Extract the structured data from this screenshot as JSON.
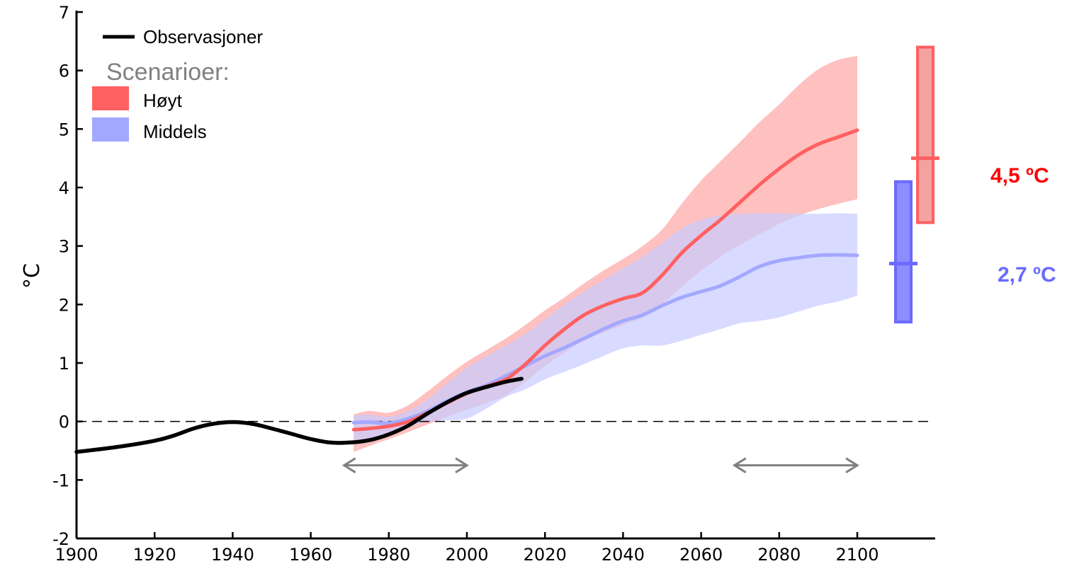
{
  "chart_data": {
    "type": "line",
    "title": "",
    "xlabel": "",
    "ylabel": "°C",
    "xlim": [
      1900,
      2120
    ],
    "ylim": [
      -2,
      7
    ],
    "xticks": [
      "1900",
      "1920",
      "1940",
      "1960",
      "1980",
      "2000",
      "2020",
      "2040",
      "2060",
      "2080",
      "2100"
    ],
    "yticks": [
      "-2",
      "-1",
      "0",
      "1",
      "2",
      "3",
      "4",
      "5",
      "6",
      "7"
    ],
    "grid": false,
    "legend": {
      "placement": "top-left",
      "observations_label": "Observasjoner",
      "scenarios_heading": "Scenarioer:",
      "high_label": "Høyt",
      "medium_label": "Middels"
    },
    "colors": {
      "observations": "#000000",
      "high_line": "#ff6060",
      "high_band": "#ffb5b5",
      "medium_line": "#a3a8ff",
      "medium_band": "#c8ccff",
      "high_text": "#ff0000",
      "medium_text": "#6a6aff",
      "arrows": "#808080"
    },
    "series": [
      {
        "name": "Observasjoner",
        "x": [
          1900,
          1910,
          1920,
          1925,
          1930,
          1935,
          1940,
          1945,
          1950,
          1955,
          1960,
          1965,
          1970,
          1975,
          1980,
          1985,
          1990,
          1995,
          2000,
          2005,
          2010,
          2014
        ],
        "y": [
          -0.52,
          -0.44,
          -0.33,
          -0.24,
          -0.12,
          -0.04,
          -0.01,
          -0.04,
          -0.12,
          -0.21,
          -0.3,
          -0.36,
          -0.36,
          -0.32,
          -0.22,
          -0.07,
          0.14,
          0.33,
          0.49,
          0.59,
          0.68,
          0.73
        ]
      },
      {
        "name": "Høyt",
        "x": [
          1971,
          1975,
          1980,
          1985,
          1990,
          1995,
          2000,
          2005,
          2010,
          2015,
          2020,
          2025,
          2030,
          2035,
          2040,
          2045,
          2050,
          2055,
          2060,
          2065,
          2070,
          2075,
          2080,
          2085,
          2090,
          2095,
          2100
        ],
        "y": [
          -0.14,
          -0.12,
          -0.08,
          0.0,
          0.15,
          0.32,
          0.48,
          0.6,
          0.72,
          0.98,
          1.3,
          1.58,
          1.82,
          1.98,
          2.1,
          2.2,
          2.5,
          2.88,
          3.18,
          3.45,
          3.75,
          4.05,
          4.32,
          4.56,
          4.74,
          4.86,
          4.98
        ],
        "band_low": [
          -0.52,
          -0.42,
          -0.3,
          -0.18,
          -0.05,
          0.08,
          0.2,
          0.32,
          0.45,
          0.68,
          0.95,
          1.18,
          1.38,
          1.52,
          1.65,
          1.78,
          2.0,
          2.3,
          2.58,
          2.82,
          3.02,
          3.2,
          3.38,
          3.52,
          3.63,
          3.72,
          3.8
        ],
        "band_high": [
          0.12,
          0.18,
          0.15,
          0.28,
          0.52,
          0.78,
          1.02,
          1.22,
          1.42,
          1.65,
          1.9,
          2.12,
          2.36,
          2.58,
          2.78,
          3.0,
          3.28,
          3.72,
          4.12,
          4.45,
          4.78,
          5.12,
          5.42,
          5.75,
          6.02,
          6.18,
          6.25
        ]
      },
      {
        "name": "Middels",
        "x": [
          1971,
          1975,
          1980,
          1985,
          1990,
          1995,
          2000,
          2005,
          2010,
          2015,
          2020,
          2025,
          2030,
          2035,
          2040,
          2045,
          2050,
          2055,
          2060,
          2065,
          2070,
          2075,
          2080,
          2085,
          2090,
          2095,
          2100
        ],
        "y": [
          -0.02,
          -0.01,
          -0.03,
          0.05,
          0.18,
          0.35,
          0.5,
          0.62,
          0.78,
          0.95,
          1.12,
          1.26,
          1.42,
          1.58,
          1.72,
          1.82,
          1.98,
          2.12,
          2.22,
          2.32,
          2.48,
          2.65,
          2.75,
          2.8,
          2.84,
          2.85,
          2.84
        ],
        "band_low": [
          -0.38,
          -0.32,
          -0.22,
          -0.1,
          0.0,
          0.02,
          0.05,
          0.22,
          0.42,
          0.55,
          0.72,
          0.85,
          0.98,
          1.12,
          1.25,
          1.3,
          1.3,
          1.38,
          1.48,
          1.58,
          1.68,
          1.72,
          1.78,
          1.88,
          1.98,
          2.05,
          2.15
        ],
        "band_high": [
          0.1,
          0.12,
          0.08,
          0.18,
          0.38,
          0.66,
          0.92,
          1.12,
          1.3,
          1.5,
          1.75,
          2.0,
          2.22,
          2.42,
          2.62,
          2.82,
          3.05,
          3.3,
          3.45,
          3.52,
          3.55,
          3.56,
          3.56,
          3.55,
          3.55,
          3.56,
          3.55
        ]
      }
    ],
    "reference_periods": [
      {
        "x_start": 1970,
        "x_end": 2000
      },
      {
        "x_start": 2070,
        "x_end": 2100
      }
    ],
    "zero_line": 0,
    "ranges_2100": [
      {
        "name": "Høyt",
        "low": 3.4,
        "high": 6.4,
        "median": 4.5,
        "label": "4,5 ºC"
      },
      {
        "name": "Middels",
        "low": 1.7,
        "high": 4.1,
        "median": 2.7,
        "label": "2,7 ºC"
      }
    ]
  }
}
